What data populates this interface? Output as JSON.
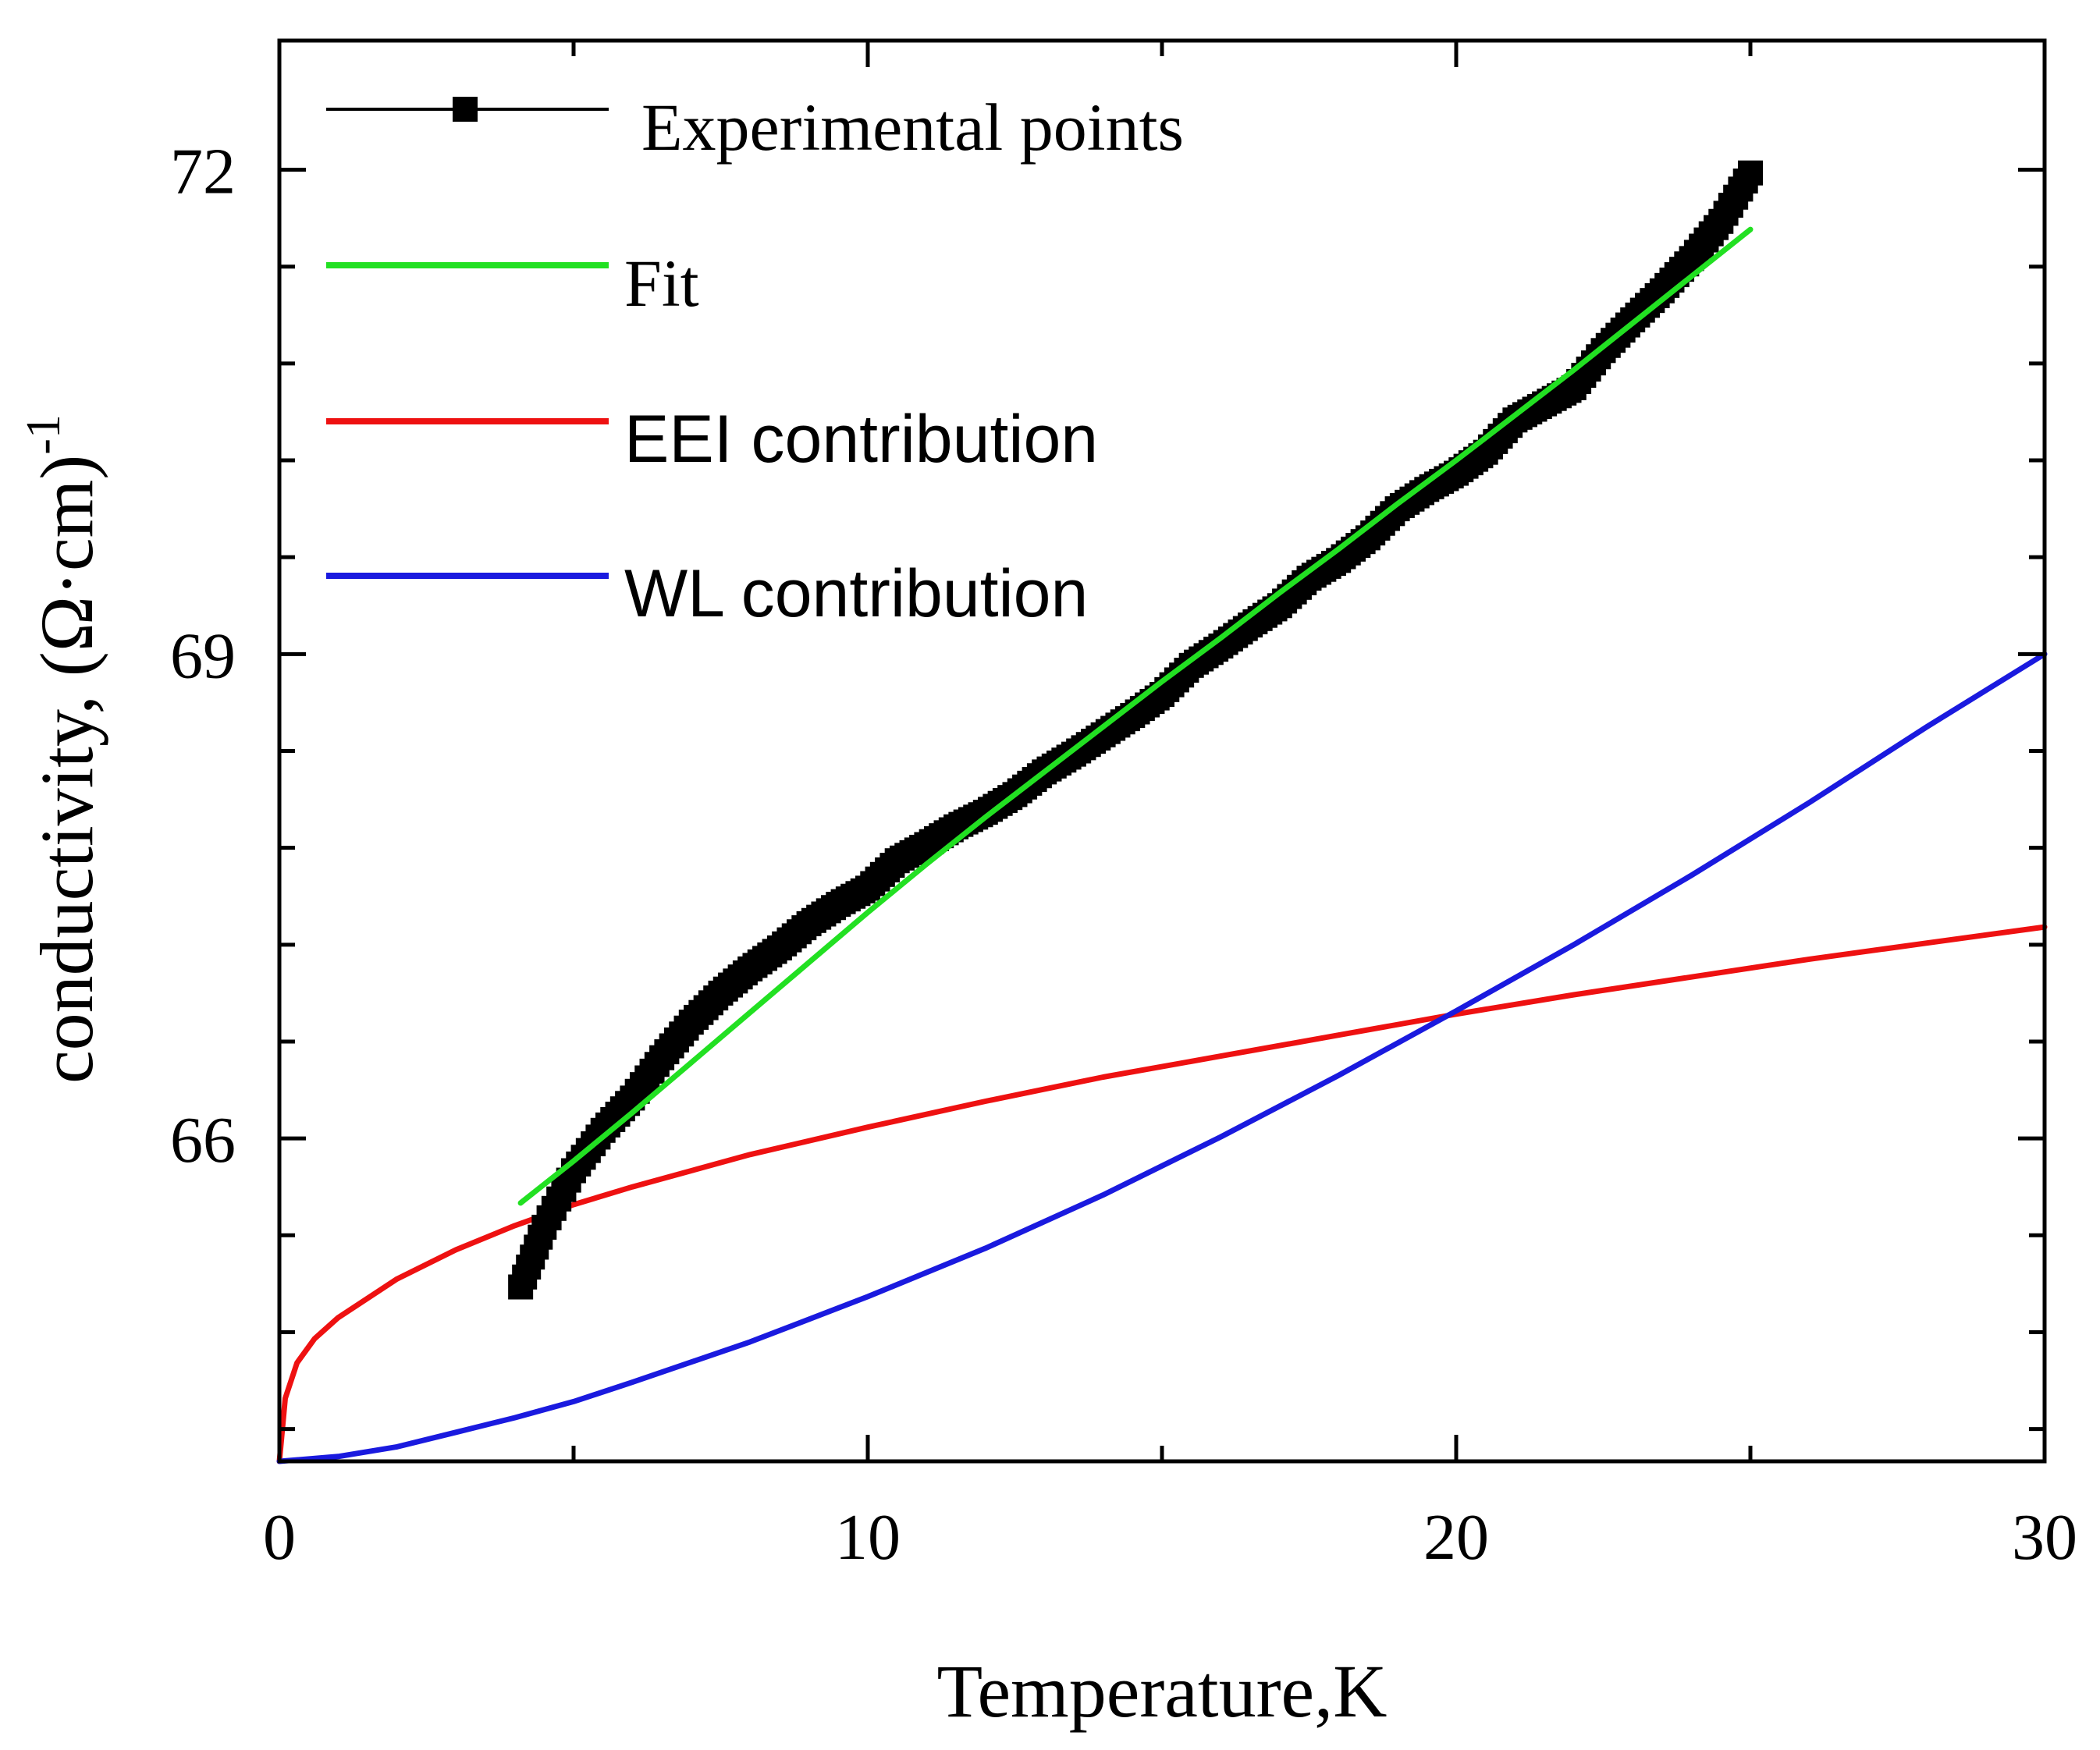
{
  "chart_data": {
    "type": "line",
    "xlabel": "Temperature,K",
    "ylabel": "conductivity, (Ω·cm)",
    "ylabel_superscript": "-1",
    "xlim": [
      0,
      30
    ],
    "ylim": [
      64,
      72.8
    ],
    "x_ticks": [
      0,
      10,
      20,
      30
    ],
    "x_tick_labels": [
      "0",
      "10",
      "20",
      "30"
    ],
    "x_minor_ticks": [
      5,
      15,
      25
    ],
    "y_ticks": [
      66,
      69,
      72
    ],
    "y_tick_labels": [
      "66",
      "69",
      "72"
    ],
    "y_minor_ticks": [
      64.2,
      64.8,
      65.4,
      66.6,
      67.2,
      67.8,
      68.4,
      69.6,
      70.2,
      70.8,
      71.4
    ],
    "legend_position": "top-left",
    "series": [
      {
        "name": "Experimental points",
        "color": "#000000",
        "style": "square-markers",
        "x": [
          4.1,
          4.5,
          5.0,
          5.5,
          6.0,
          6.5,
          7.0,
          7.5,
          8.0,
          8.5,
          9.0,
          9.5,
          10.0,
          10.5,
          11.0,
          11.5,
          12.0,
          12.5,
          13.0,
          13.5,
          14.0,
          14.5,
          15.0,
          15.5,
          16.0,
          16.5,
          17.0,
          17.5,
          18.0,
          18.5,
          19.0,
          19.5,
          20.0,
          20.5,
          21.0,
          21.5,
          22.0,
          22.5,
          23.0,
          23.5,
          24.0,
          24.5,
          25.0
        ],
        "y": [
          65.08,
          65.45,
          65.8,
          66.05,
          66.25,
          66.5,
          66.72,
          66.9,
          67.05,
          67.18,
          67.33,
          67.45,
          67.55,
          67.72,
          67.82,
          67.93,
          68.02,
          68.13,
          68.27,
          68.38,
          68.5,
          68.62,
          68.75,
          68.93,
          69.05,
          69.18,
          69.3,
          69.47,
          69.58,
          69.72,
          69.9,
          70.02,
          70.12,
          70.25,
          70.45,
          70.55,
          70.65,
          70.88,
          71.07,
          71.25,
          71.45,
          71.68,
          71.98
        ]
      },
      {
        "name": "Fit",
        "color": "#22e022",
        "style": "line",
        "x": [
          4.1,
          5,
          6,
          7,
          8,
          9,
          10,
          11,
          12,
          13,
          14,
          15,
          16,
          17,
          18,
          19,
          20,
          21,
          22,
          23,
          24,
          25
        ],
        "y": [
          65.6,
          65.86,
          66.16,
          66.47,
          66.78,
          67.09,
          67.4,
          67.7,
          67.99,
          68.27,
          68.55,
          68.83,
          69.1,
          69.38,
          69.65,
          69.93,
          70.2,
          70.48,
          70.76,
          71.05,
          71.34,
          71.63
        ]
      },
      {
        "name": "EEI contribution",
        "color": "#ee1111",
        "style": "line",
        "x": [
          0,
          0.1,
          0.3,
          0.6,
          1,
          2,
          3,
          4,
          5,
          6,
          8,
          10,
          12,
          14,
          16,
          18,
          20,
          22,
          24,
          26,
          28,
          30
        ],
        "y": [
          64.0,
          64.39,
          64.61,
          64.76,
          64.89,
          65.13,
          65.31,
          65.46,
          65.59,
          65.7,
          65.9,
          66.07,
          66.23,
          66.38,
          66.51,
          66.64,
          66.77,
          66.89,
          67.0,
          67.11,
          67.21,
          67.31
        ]
      },
      {
        "name": "WL contribution",
        "color": "#1a1adf",
        "style": "line",
        "x": [
          0,
          1,
          2,
          3,
          4,
          5,
          6,
          8,
          10,
          12,
          14,
          16,
          18,
          20,
          22,
          24,
          26,
          28,
          30
        ],
        "y": [
          64.0,
          64.03,
          64.09,
          64.18,
          64.27,
          64.37,
          64.49,
          64.74,
          65.02,
          65.32,
          65.65,
          66.01,
          66.39,
          66.79,
          67.2,
          67.63,
          68.08,
          68.55,
          69.0
        ]
      }
    ]
  }
}
